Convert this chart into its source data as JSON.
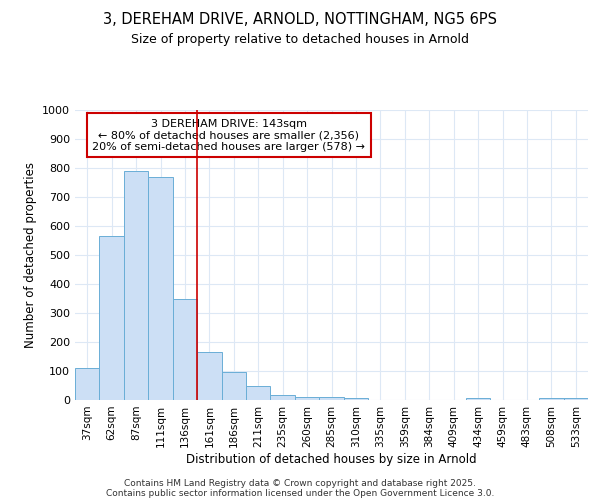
{
  "title1": "3, DEREHAM DRIVE, ARNOLD, NOTTINGHAM, NG5 6PS",
  "title2": "Size of property relative to detached houses in Arnold",
  "xlabel": "Distribution of detached houses by size in Arnold",
  "ylabel": "Number of detached properties",
  "categories": [
    "37sqm",
    "62sqm",
    "87sqm",
    "111sqm",
    "136sqm",
    "161sqm",
    "186sqm",
    "211sqm",
    "235sqm",
    "260sqm",
    "285sqm",
    "310sqm",
    "335sqm",
    "359sqm",
    "384sqm",
    "409sqm",
    "434sqm",
    "459sqm",
    "483sqm",
    "508sqm",
    "533sqm"
  ],
  "values": [
    110,
    565,
    790,
    770,
    350,
    165,
    95,
    50,
    18,
    12,
    12,
    8,
    0,
    0,
    0,
    0,
    8,
    0,
    0,
    8,
    8
  ],
  "bar_color": "#ccdff5",
  "bar_edge_color": "#6aaed6",
  "vline_color": "#cc0000",
  "annotation_title": "3 DEREHAM DRIVE: 143sqm",
  "annotation_line1": "← 80% of detached houses are smaller (2,356)",
  "annotation_line2": "20% of semi-detached houses are larger (578) →",
  "annotation_box_color": "#ffffff",
  "annotation_border_color": "#cc0000",
  "ylim": [
    0,
    1000
  ],
  "yticks": [
    0,
    100,
    200,
    300,
    400,
    500,
    600,
    700,
    800,
    900,
    1000
  ],
  "footer1": "Contains HM Land Registry data © Crown copyright and database right 2025.",
  "footer2": "Contains public sector information licensed under the Open Government Licence 3.0.",
  "bg_color": "#ffffff",
  "plot_bg_color": "#ffffff",
  "grid_color": "#dde8f5"
}
